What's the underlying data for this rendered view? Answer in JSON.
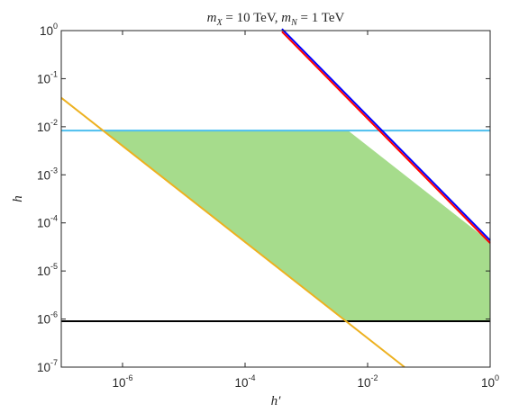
{
  "chart_data": {
    "type": "line",
    "title": "m_X = 10 TeV, m_N = 1 TeV",
    "title_parts": [
      {
        "text": "m",
        "italic": true
      },
      {
        "text": "X",
        "italic": true,
        "sub": true
      },
      {
        "text": " = 10 TeV, ",
        "italic": false
      },
      {
        "text": "m",
        "italic": true
      },
      {
        "text": "N",
        "italic": true,
        "sub": true
      },
      {
        "text": " = 1 TeV",
        "italic": false
      }
    ],
    "xlabel": "h′",
    "ylabel": "h",
    "x_scale": "log",
    "y_scale": "log",
    "xlim": [
      1e-07,
      1
    ],
    "ylim": [
      1e-07,
      1
    ],
    "x_ticks": [
      1e-06,
      0.0001,
      0.01,
      1
    ],
    "x_tick_labels": [
      {
        "base": "10",
        "exp": "-6"
      },
      {
        "base": "10",
        "exp": "-4"
      },
      {
        "base": "10",
        "exp": "-2"
      },
      {
        "base": "10",
        "exp": "0"
      }
    ],
    "y_ticks": [
      1e-07,
      1e-06,
      1e-05,
      0.0001,
      0.001,
      0.01,
      0.1,
      1
    ],
    "y_tick_labels": [
      {
        "base": "10",
        "exp": "-7"
      },
      {
        "base": "10",
        "exp": "-6"
      },
      {
        "base": "10",
        "exp": "-5"
      },
      {
        "base": "10",
        "exp": "-4"
      },
      {
        "base": "10",
        "exp": "-3"
      },
      {
        "base": "10",
        "exp": "-2"
      },
      {
        "base": "10",
        "exp": "-1"
      },
      {
        "base": "10",
        "exp": "0"
      }
    ],
    "grid": false,
    "series": [
      {
        "color": "#4dbeee",
        "x": [
          1e-07,
          1
        ],
        "y": [
          0.0083,
          0.0083
        ]
      },
      {
        "color": "#000000",
        "x": [
          1e-07,
          1
        ],
        "y": [
          9e-07,
          9e-07
        ]
      },
      {
        "color": "#edb120",
        "x": [
          1e-07,
          0.04
        ],
        "y": [
          0.04,
          1e-07
        ]
      },
      {
        "color": "#0000ff",
        "x": [
          0.0004,
          1
        ],
        "y": [
          1,
          4e-05
        ]
      },
      {
        "color": "#ff0000",
        "x": [
          0.0004,
          1
        ],
        "y": [
          1,
          4e-05
        ]
      }
    ],
    "shaded_region": {
      "color": "#a6dc8c",
      "polygon": [
        [
          5e-07,
          0.0083
        ],
        [
          0.0048,
          0.0083
        ],
        [
          1,
          4e-05
        ],
        [
          1,
          9e-07
        ],
        [
          0.0045,
          9e-07
        ]
      ]
    }
  }
}
